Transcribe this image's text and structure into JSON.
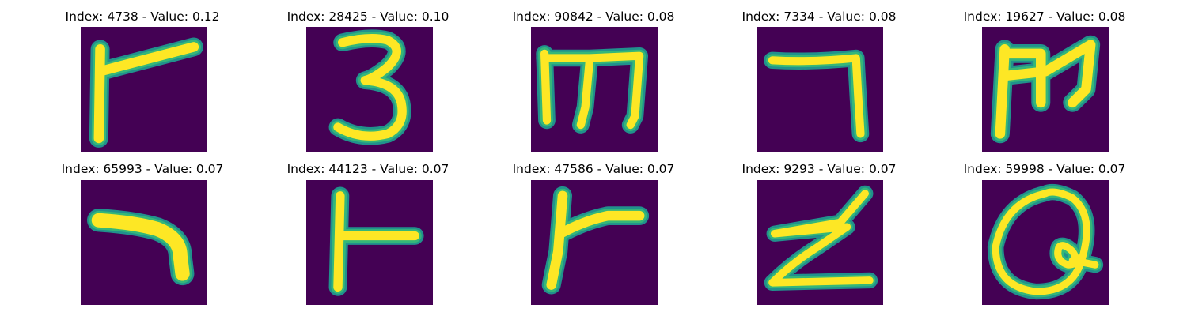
{
  "figure": {
    "panels": [
      {
        "title": "Index: 4738 - Value: 0.12",
        "glyph": "r-shape"
      },
      {
        "title": "Index: 28425 - Value: 0.10",
        "glyph": "digit-3"
      },
      {
        "title": "Index: 90842 - Value: 0.08",
        "glyph": "m-shape"
      },
      {
        "title": "Index: 7334 - Value: 0.08",
        "glyph": "seven-shape"
      },
      {
        "title": "Index: 19627 - Value: 0.08",
        "glyph": "m-shape-2"
      },
      {
        "title": "Index: 65993 - Value: 0.07",
        "glyph": "hook-shape"
      },
      {
        "title": "Index: 44123 - Value: 0.07",
        "glyph": "t-shape"
      },
      {
        "title": "Index: 47586 - Value: 0.07",
        "glyph": "r-shape-2"
      },
      {
        "title": "Index: 9293 - Value: 0.07",
        "glyph": "z-shape"
      },
      {
        "title": "Index: 59998 - Value: 0.07",
        "glyph": "q-shape"
      }
    ],
    "colors": {
      "background": "#440154",
      "stroke_core": "#fde725",
      "stroke_edge": "#35b779",
      "stroke_halo": "#21918c"
    }
  }
}
